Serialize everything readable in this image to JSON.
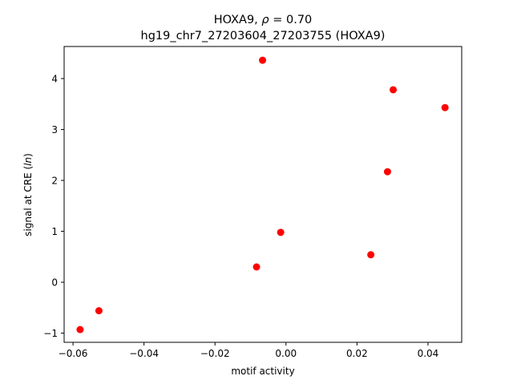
{
  "chart_data": {
    "type": "scatter",
    "title": "HOXA9, ρ = 0.70",
    "subtitle": "hg19_chr7_27203604_27203755 (HOXA9)",
    "xlabel": "motif activity",
    "ylabel": "signal at CRE (ln)",
    "xlim": [
      -0.0625,
      0.0495
    ],
    "ylim": [
      -1.18,
      4.63
    ],
    "xticks": [
      -0.06,
      -0.04,
      -0.02,
      0.0,
      0.02,
      0.04
    ],
    "xtick_labels": [
      "−0.06",
      "−0.04",
      "−0.02",
      "0.00",
      "0.02",
      "0.04"
    ],
    "yticks": [
      -1,
      0,
      1,
      2,
      3,
      4
    ],
    "ytick_labels": [
      "−1",
      "0",
      "1",
      "2",
      "3",
      "4"
    ],
    "grid": false,
    "legend": "none",
    "marker_color": "#ff0000",
    "points": [
      {
        "x": -0.058,
        "y": -0.93
      },
      {
        "x": -0.0527,
        "y": -0.56
      },
      {
        "x": -0.0083,
        "y": 0.3
      },
      {
        "x": -0.0066,
        "y": 4.36
      },
      {
        "x": -0.0015,
        "y": 0.98
      },
      {
        "x": 0.0239,
        "y": 0.54
      },
      {
        "x": 0.0286,
        "y": 2.17
      },
      {
        "x": 0.0302,
        "y": 3.78
      },
      {
        "x": 0.0448,
        "y": 3.43
      }
    ]
  }
}
